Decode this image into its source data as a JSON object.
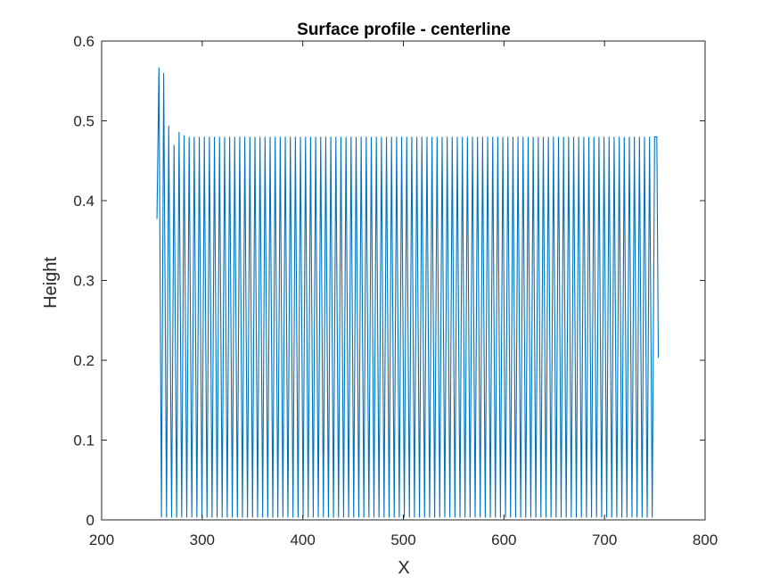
{
  "chart_data": {
    "type": "line",
    "title": "Surface profile - centerline",
    "xlabel": "X",
    "ylabel": "Height",
    "xlim": [
      200,
      800
    ],
    "ylim": [
      0,
      0.6
    ],
    "xticks": [
      200,
      300,
      400,
      500,
      600,
      700,
      800
    ],
    "yticks": [
      0,
      0.1,
      0.2,
      0.3,
      0.4,
      0.5,
      0.6
    ],
    "xtick_labels": [
      "200",
      "300",
      "400",
      "500",
      "600",
      "700",
      "800"
    ],
    "ytick_labels": [
      "0",
      "0.1",
      "0.2",
      "0.3",
      "0.4",
      "0.5",
      "0.6"
    ],
    "grid": false,
    "box": true,
    "line_color": "#0072bd",
    "axis_color": "#262626",
    "series": [
      {
        "style": "sawtooth oscillation",
        "start": [
          255,
          0.377
        ],
        "peaks": [
          [
            257.0,
            0.567
          ],
          [
            261.7,
            0.56
          ],
          [
            266.7,
            0.494
          ],
          [
            272.0,
            0.47
          ],
          [
            277.0,
            0.486
          ],
          [
            282.0,
            0.482
          ]
        ],
        "first_trough_x": 259.5,
        "period": 5.03,
        "steady_peak_value": 0.48,
        "trough_value": 0.003,
        "last_peak_x": 752.0,
        "end": [
          753.5,
          0.203
        ]
      }
    ]
  }
}
